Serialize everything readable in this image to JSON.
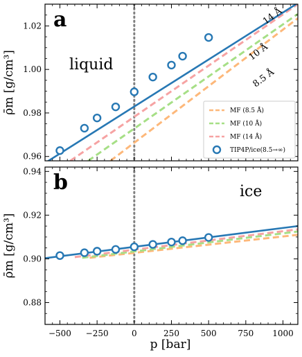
{
  "chart_data": [
    {
      "type": "line",
      "panel_label": "a",
      "phase_label": "liquid",
      "xlabel": "p [bar]",
      "ylabel": "ρ̄m [g/cm³]",
      "xlim": [
        -600,
        1100
      ],
      "ylim": [
        0.958,
        1.03
      ],
      "xticks": [
        -500,
        -250,
        0,
        250,
        500,
        750,
        1000
      ],
      "yticks": [
        0.96,
        0.98,
        1.0,
        1.02
      ],
      "ytick_labels": [
        "0.96",
        "0.98",
        "1.00",
        "1.02"
      ],
      "vline_x": 0,
      "series": [
        {
          "name": "MF (8.5 Å)",
          "style": "dashed",
          "color": "#fdb87a",
          "x": [
            -160,
            1100
          ],
          "y": [
            0.958,
            1.0235
          ]
        },
        {
          "name": "MF (10 Å)",
          "style": "dashed",
          "color": "#a6df86",
          "x": [
            -310,
            1100
          ],
          "y": [
            0.958,
            1.0255
          ]
        },
        {
          "name": "MF (14 Å)",
          "style": "dashed",
          "color": "#f6a3a3",
          "x": [
            -430,
            1100
          ],
          "y": [
            0.958,
            1.03
          ]
        },
        {
          "name": "fit",
          "style": "solid",
          "color": "#2778b4",
          "x": [
            -600,
            1100
          ],
          "y": [
            0.957,
            1.0305
          ]
        },
        {
          "name": "TIP4P/ice(8.5→∞)",
          "style": "markers",
          "color": "#2778b4",
          "x": [
            -500,
            -335,
            -250,
            -125,
            0,
            125,
            250,
            325,
            500
          ],
          "y": [
            0.9627,
            0.973,
            0.9777,
            0.9828,
            0.9897,
            0.9965,
            1.002,
            1.0061,
            1.0147
          ]
        }
      ],
      "annotations": [
        {
          "text": "14 Å",
          "x": 940,
          "y": 1.0235
        },
        {
          "text": "10 Å",
          "x": 845,
          "y": 1.007
        },
        {
          "text": "8.5 Å",
          "x": 880,
          "y": 0.995
        }
      ],
      "legend": {
        "placement": "bottom-right",
        "entries": [
          {
            "label": "MF (8.5 Å)",
            "style": "dashed",
            "color": "#fdb87a"
          },
          {
            "label": "MF (10 Å)",
            "style": "dashed",
            "color": "#a6df86"
          },
          {
            "label": "MF (14 Å)",
            "style": "dashed",
            "color": "#f6a3a3"
          },
          {
            "label": "TIP4P/ice(8.5→∞)",
            "style": "marker",
            "color": "#2778b4"
          }
        ]
      }
    },
    {
      "type": "line",
      "panel_label": "b",
      "phase_label": "ice",
      "xlabel": "p [bar]",
      "ylabel": "ρ̄m [g/cm³]",
      "xlim": [
        -600,
        1100
      ],
      "ylim": [
        0.87,
        0.942
      ],
      "xticks": [
        -500,
        -250,
        0,
        250,
        500,
        750,
        1000
      ],
      "xtick_labels": [
        "−500",
        "−250",
        "0",
        "250",
        "500",
        "750",
        "1000"
      ],
      "yticks": [
        0.88,
        0.9,
        0.92,
        0.94
      ],
      "ytick_labels": [
        "0.88",
        "0.90",
        "0.92",
        "0.94"
      ],
      "vline_x": 0,
      "series": [
        {
          "name": "MF (8.5 Å)",
          "style": "dashed",
          "color": "#fdb87a",
          "x": [
            -300,
            1100
          ],
          "y": [
            0.9005,
            0.911
          ]
        },
        {
          "name": "MF (10 Å)",
          "style": "dashed",
          "color": "#a6df86",
          "x": [
            -350,
            1100
          ],
          "y": [
            0.9005,
            0.9125
          ]
        },
        {
          "name": "MF (14 Å)",
          "style": "dashed",
          "color": "#f6a3a3",
          "x": [
            -400,
            1100
          ],
          "y": [
            0.9008,
            0.9135
          ]
        },
        {
          "name": "fit",
          "style": "solid",
          "color": "#2778b4",
          "x": [
            -600,
            1100
          ],
          "y": [
            0.9003,
            0.915
          ]
        },
        {
          "name": "TIP4P/ice(8.5→∞)",
          "style": "markers",
          "color": "#2778b4",
          "x": [
            -500,
            -335,
            -250,
            -125,
            0,
            125,
            250,
            325,
            500
          ],
          "y": [
            0.9015,
            0.9028,
            0.9035,
            0.9043,
            0.9055,
            0.9066,
            0.9077,
            0.9083,
            0.9098
          ]
        }
      ]
    }
  ]
}
